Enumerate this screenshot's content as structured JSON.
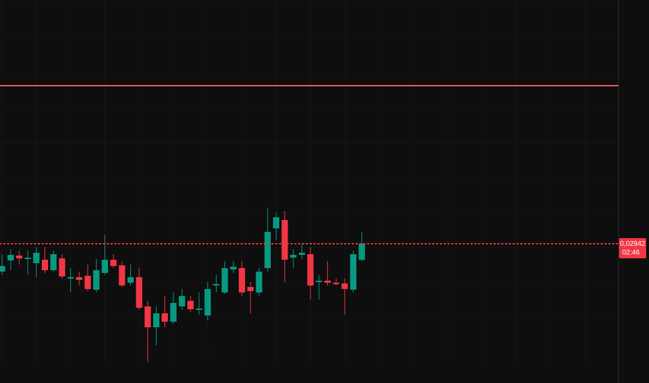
{
  "chart_data": {
    "type": "candlestick",
    "ylim": [
      0.029245,
      0.02977
    ],
    "up_color": "#089981",
    "down_color": "#f23645",
    "grid": true,
    "open": [
      0.02938,
      0.029396,
      0.029403,
      0.029398,
      0.029392,
      0.029397,
      0.029382,
      0.029399,
      0.02937,
      0.029372,
      0.029374,
      0.029354,
      0.029378,
      0.029397,
      0.029389,
      0.029364,
      0.029372,
      0.02933,
      0.0293,
      0.02932,
      0.029308,
      0.02933,
      0.029338,
      0.029325,
      0.029317,
      0.02936,
      0.02935,
      0.029383,
      0.029385,
      0.029358,
      0.02935,
      0.029385,
      0.029442,
      0.029454,
      0.0294,
      0.029404,
      0.029405,
      0.029365,
      0.029367,
      0.029364,
      0.029363,
      0.029354,
      0.029397
    ],
    "high": [
      0.029405,
      0.029412,
      0.02941,
      0.02941,
      0.029415,
      0.029415,
      0.02941,
      0.029405,
      0.029385,
      0.02938,
      0.02939,
      0.029398,
      0.029433,
      0.029405,
      0.029395,
      0.02939,
      0.029385,
      0.029338,
      0.02933,
      0.029345,
      0.02935,
      0.029355,
      0.029345,
      0.02935,
      0.029365,
      0.029375,
      0.029395,
      0.029395,
      0.029395,
      0.029365,
      0.029385,
      0.029472,
      0.029465,
      0.029467,
      0.029412,
      0.02942,
      0.029415,
      0.029375,
      0.029395,
      0.02937,
      0.02937,
      0.02941,
      0.029437
    ],
    "low": [
      0.029375,
      0.029382,
      0.02939,
      0.029375,
      0.029372,
      0.029378,
      0.02938,
      0.02937,
      0.02935,
      0.02936,
      0.029352,
      0.02935,
      0.029375,
      0.029385,
      0.029358,
      0.02936,
      0.029325,
      0.02925,
      0.029274,
      0.0293,
      0.029305,
      0.029325,
      0.029322,
      0.029318,
      0.02931,
      0.02935,
      0.029348,
      0.029378,
      0.029345,
      0.02932,
      0.029345,
      0.02938,
      0.029425,
      0.029365,
      0.029385,
      0.029398,
      0.02934,
      0.02934,
      0.02936,
      0.02936,
      0.029318,
      0.02935,
      0.029395
    ],
    "close": [
      0.029388,
      0.029404,
      0.029399,
      0.0294,
      0.029407,
      0.029382,
      0.029405,
      0.029373,
      0.029372,
      0.029368,
      0.029355,
      0.029382,
      0.029397,
      0.029388,
      0.02936,
      0.029372,
      0.029328,
      0.0293,
      0.02932,
      0.029308,
      0.029335,
      0.029345,
      0.029326,
      0.029327,
      0.029355,
      0.029362,
      0.029385,
      0.029387,
      0.02935,
      0.029352,
      0.02938,
      0.029437,
      0.029458,
      0.029397,
      0.029404,
      0.029407,
      0.02936,
      0.029367,
      0.029364,
      0.029362,
      0.029355,
      0.029405,
      0.02942
    ],
    "hline": {
      "value": 0.029647,
      "color": "#f0595e"
    },
    "price_label": {
      "value": 0.02942,
      "label": "0,02942"
    },
    "countdown": "02:46"
  }
}
